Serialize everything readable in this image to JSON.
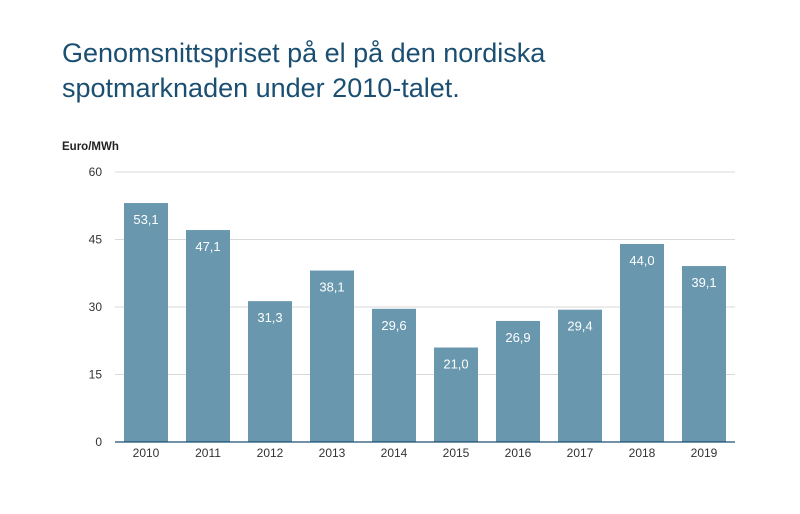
{
  "chart_data": {
    "type": "bar",
    "title_lines": [
      "Genomsnittspriset på el på den nordiska",
      "spotmarknaden under 2010-talet."
    ],
    "ylabel": "Euro/MWh",
    "xlabel": "",
    "categories": [
      "2010",
      "2011",
      "2012",
      "2013",
      "2014",
      "2015",
      "2016",
      "2017",
      "2018",
      "2019"
    ],
    "values": [
      53.1,
      47.1,
      31.3,
      38.1,
      29.6,
      21.0,
      26.9,
      29.4,
      44.0,
      39.1
    ],
    "value_labels": [
      "53,1",
      "47,1",
      "31,3",
      "38,1",
      "29,6",
      "21,0",
      "26,9",
      "29,4",
      "44,0",
      "39,1"
    ],
    "yticks": [
      0,
      15,
      30,
      45,
      60
    ],
    "ylim": [
      0,
      60
    ],
    "grid": true,
    "legend": "none",
    "colors": {
      "bar": "#6897ae",
      "title": "#1b4f72",
      "grid": "#d9d9d9",
      "axis": "#1b4f72"
    }
  }
}
